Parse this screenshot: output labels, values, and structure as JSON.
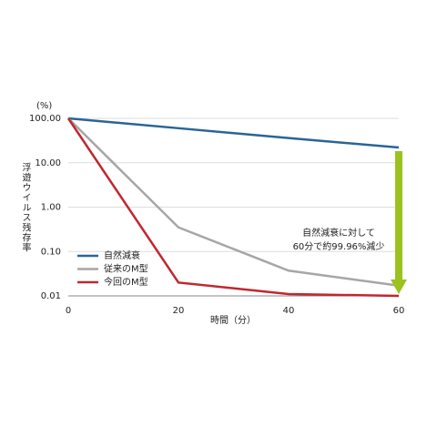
{
  "chart_data": {
    "type": "line",
    "y_unit": "(%)",
    "y_label": "浮遊ウイルス残存率",
    "x_label": "時間（分）",
    "annotation": [
      "自然減衰に対して",
      "60分で約99.96%減少"
    ],
    "x": [
      0,
      20,
      40,
      60
    ],
    "series": [
      {
        "name": "自然減衰",
        "color": "#2a6496",
        "values": [
          100,
          60,
          36,
          22
        ]
      },
      {
        "name": "従来のM型",
        "color": "#a6a6a6",
        "values": [
          100,
          0.35,
          0.037,
          0.017
        ]
      },
      {
        "name": "今回のM型",
        "color": "#c0282d",
        "values": [
          100,
          0.02,
          0.011,
          0.01
        ]
      }
    ],
    "xlim": [
      0,
      60
    ],
    "xticks": [
      0,
      20,
      40,
      60
    ],
    "ylim": [
      0.01,
      100
    ],
    "log_y": true,
    "yticks": [
      {
        "value": 100,
        "label": "100.00"
      },
      {
        "value": 10,
        "label": "10.00"
      },
      {
        "value": 1,
        "label": "1.00"
      },
      {
        "value": 0.1,
        "label": "0.10"
      },
      {
        "value": 0.01,
        "label": "0.01"
      }
    ],
    "grid": true,
    "arrow_color": "#9bc21f"
  }
}
